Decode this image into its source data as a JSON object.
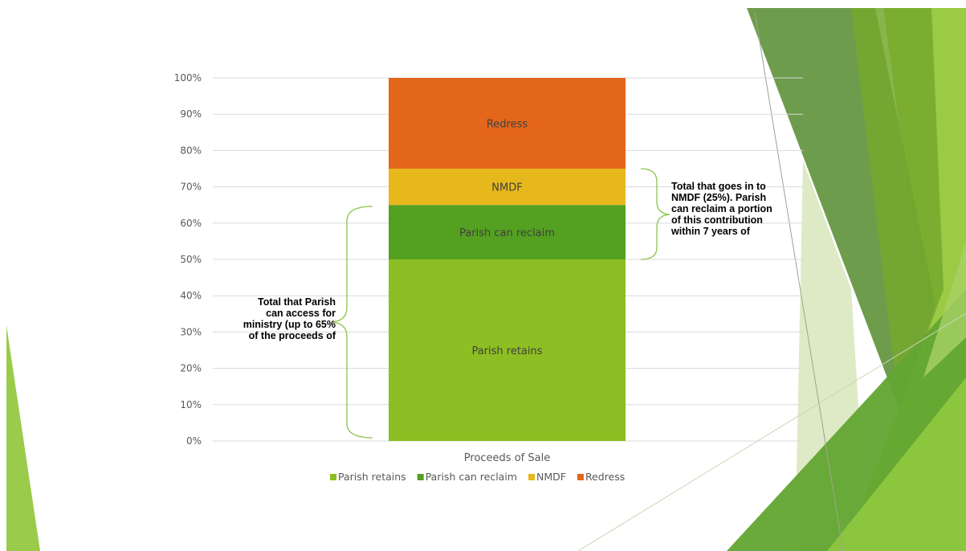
{
  "chart_data": {
    "type": "bar",
    "stacked": true,
    "orientation": "vertical",
    "categories": [
      "Proceeds of Sale"
    ],
    "series": [
      {
        "name": "Parish retains",
        "values": [
          50
        ],
        "color": "#8DBE23"
      },
      {
        "name": "Parish can reclaim",
        "values": [
          15
        ],
        "color": "#54A021"
      },
      {
        "name": "NMDF",
        "values": [
          10
        ],
        "color": "#E6B81C"
      },
      {
        "name": "Redress",
        "values": [
          25
        ],
        "color": "#E4661A"
      }
    ],
    "ylim": [
      0,
      100
    ],
    "yticks": [
      "0%",
      "10%",
      "20%",
      "30%",
      "40%",
      "50%",
      "60%",
      "70%",
      "80%",
      "90%",
      "100%"
    ],
    "grid": true,
    "legend": "bottom",
    "segment_label_color": "#404040",
    "annotations": {
      "left": "Total that Parish\ncan access for\nministry (up to 65%\nof the proceeds of",
      "right": "Total that goes in to\nNMDF (25%). Parish\ncan reclaim a portion\nof this contribution\nwithin 7 years of"
    }
  }
}
